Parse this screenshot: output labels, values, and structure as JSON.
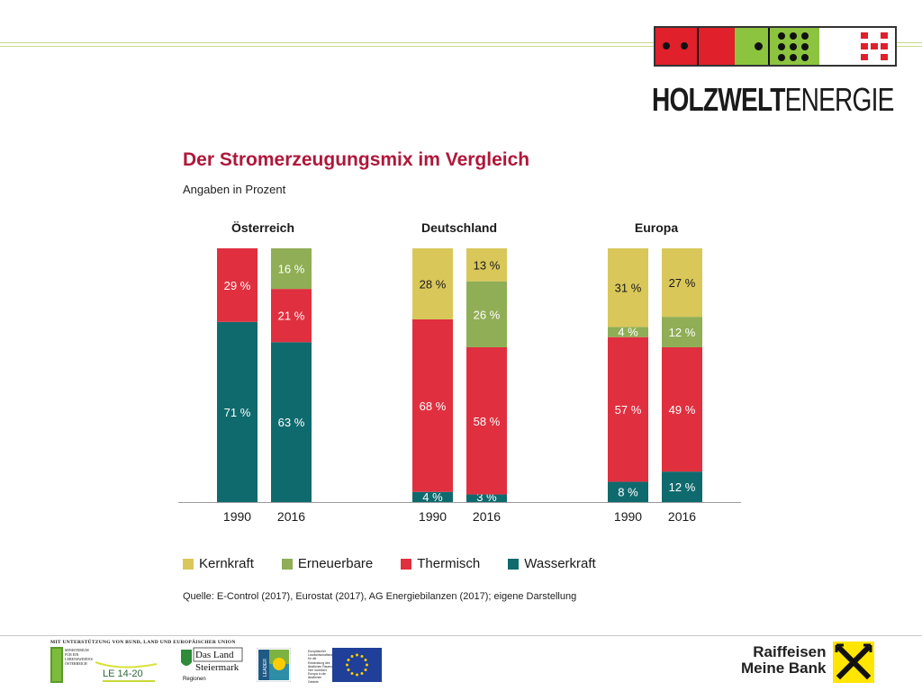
{
  "brand": {
    "name_bold": "HOLZWELT",
    "name_light": "ENERGIE",
    "colors": {
      "red": "#e0202b",
      "green": "#8dc43f",
      "white": "#ffffff"
    }
  },
  "header": {
    "title": "Der Stromerzeugungsmix im Vergleich",
    "subtitle": "Angaben in Prozent"
  },
  "chart_data": {
    "type": "bar",
    "stacked": true,
    "unit": "%",
    "groups": [
      {
        "name": "Österreich",
        "bars": [
          {
            "year": "1990",
            "Wasserkraft": 71,
            "Thermisch": 29,
            "Erneuerbare": 0,
            "Kernkraft": 0
          },
          {
            "year": "2016",
            "Wasserkraft": 63,
            "Thermisch": 21,
            "Erneuerbare": 16,
            "Kernkraft": 0
          }
        ]
      },
      {
        "name": "Deutschland",
        "bars": [
          {
            "year": "1990",
            "Wasserkraft": 4,
            "Thermisch": 68,
            "Erneuerbare": 0,
            "Kernkraft": 28
          },
          {
            "year": "2016",
            "Wasserkraft": 3,
            "Thermisch": 58,
            "Erneuerbare": 26,
            "Kernkraft": 13
          }
        ]
      },
      {
        "name": "Europa",
        "bars": [
          {
            "year": "1990",
            "Wasserkraft": 8,
            "Thermisch": 57,
            "Erneuerbare": 4,
            "Kernkraft": 31
          },
          {
            "year": "2016",
            "Wasserkraft": 12,
            "Thermisch": 49,
            "Erneuerbare": 12,
            "Kernkraft": 27
          }
        ]
      }
    ],
    "series": [
      {
        "name": "Kernkraft",
        "color": "#d9c75a"
      },
      {
        "name": "Erneuerbare",
        "color": "#8fae55"
      },
      {
        "name": "Thermisch",
        "color": "#e0303f"
      },
      {
        "name": "Wasserkraft",
        "color": "#0f6a6e"
      }
    ],
    "ylim": [
      0,
      100
    ],
    "legend_position": "bottom"
  },
  "source": "Quelle: E-Control (2017), Eurostat (2017), AG Energiebilanzen (2017); eigene Darstellung",
  "footer": {
    "funding_text": "MIT UNTERSTÜTZUNG VON BUND, LAND UND EUROPÄISCHER UNION",
    "ministry_text": "MINISTERIUM FÜR EIN LEBENSWERTES ÖSTERREICH",
    "le_text": "LE 14-20",
    "steiermark_line1": "Das Land",
    "steiermark_line2": "Steiermark",
    "steiermark_line3": "Regionen",
    "leader_text": "LEADER",
    "eu_fund_text": "Europäischer Landwirtschaftsfonds für die Entwicklung des ländlichen Raums: Hier investiert Europa in die ländlichen Gebiete",
    "bank_line1": "Raiffeisen",
    "bank_line2": "Meine Bank",
    "bank_colors": {
      "yellow": "#ffe500",
      "black": "#000000"
    }
  }
}
